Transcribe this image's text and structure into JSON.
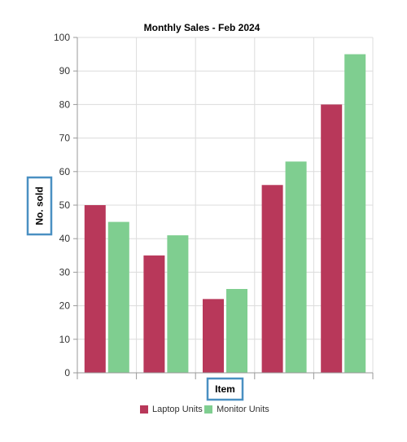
{
  "chart_data": {
    "type": "bar",
    "title": "Monthly Sales - Feb 2024",
    "xlabel": "Item",
    "ylabel": "No. sold",
    "ylim": [
      0,
      100
    ],
    "yticks": [
      0,
      10,
      20,
      30,
      40,
      50,
      60,
      70,
      80,
      90,
      100
    ],
    "grid": true,
    "legend_position": "bottom",
    "categories": [
      "",
      "",
      "",
      "",
      ""
    ],
    "series": [
      {
        "name": "Laptop Units",
        "color": "#b8385a",
        "values": [
          50,
          35,
          22,
          56,
          80
        ]
      },
      {
        "name": "Monitor Units",
        "color": "#7fce90",
        "values": [
          45,
          41,
          25,
          63,
          95
        ]
      }
    ],
    "highlight_color": "#4a90c2"
  }
}
